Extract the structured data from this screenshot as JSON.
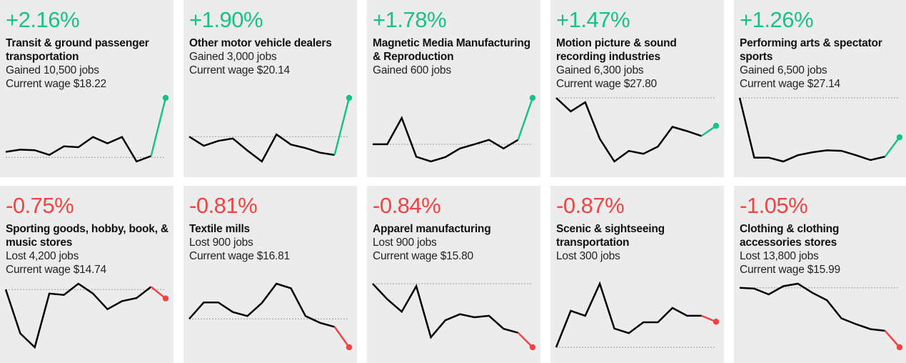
{
  "colors": {
    "gain": "#19c08a",
    "loss": "#ef4444",
    "line": "#000000",
    "background": "#ececec"
  },
  "cards": [
    {
      "pct": "+2.16%",
      "name": "Transit & ground passenger transportation",
      "change": "Gained 10,500 jobs",
      "wage": "Current wage $18.22",
      "direction": "gain"
    },
    {
      "pct": "+1.90%",
      "name": "Other motor vehicle dealers",
      "change": "Gained 3,000 jobs",
      "wage": "Current wage $20.14",
      "direction": "gain"
    },
    {
      "pct": "+1.78%",
      "name": "Magnetic Media Manufacturing & Reproduction",
      "change": "Gained 600 jobs",
      "wage": "",
      "direction": "gain"
    },
    {
      "pct": "+1.47%",
      "name": "Motion picture & sound recording industries",
      "change": "Gained 6,300 jobs",
      "wage": "Current wage $27.80",
      "direction": "gain"
    },
    {
      "pct": "+1.26%",
      "name": "Performing arts & spectator sports",
      "change": "Gained 6,500 jobs",
      "wage": "Current wage $27.14",
      "direction": "gain"
    },
    {
      "pct": "-0.75%",
      "name": "Sporting goods, hobby, book, & music stores",
      "change": "Lost 4,200 jobs",
      "wage": "Current wage $14.74",
      "direction": "loss"
    },
    {
      "pct": "-0.81%",
      "name": "Textile mills",
      "change": "Lost 900 jobs",
      "wage": "Current wage $16.81",
      "direction": "loss"
    },
    {
      "pct": "-0.84%",
      "name": "Apparel manufacturing",
      "change": "Lost 900 jobs",
      "wage": "Current wage $15.80",
      "direction": "loss"
    },
    {
      "pct": "-0.87%",
      "name": "Scenic & sightseeing transportation",
      "change": "Lost 300 jobs",
      "wage": "",
      "direction": "loss"
    },
    {
      "pct": "-1.05%",
      "name": "Clothing & clothing accessories stores",
      "change": "Lost 13,800 jobs",
      "wage": "Current wage $15.99",
      "direction": "loss"
    }
  ],
  "chart_data": [
    {
      "type": "line",
      "title": "Transit & ground passenger transportation",
      "values": [
        0.2,
        0.28,
        0.26,
        0.09,
        0.4,
        0.37,
        0.74,
        0.51,
        0.74,
        -0.15,
        0.05,
        2.16
      ],
      "baseline": 0
    },
    {
      "type": "line",
      "title": "Other motor vehicle dealers",
      "values": [
        0.0,
        -0.45,
        -0.21,
        -0.09,
        -0.68,
        -1.22,
        0.11,
        -0.39,
        -0.56,
        -0.79,
        -0.9,
        1.9
      ],
      "baseline": 0
    },
    {
      "type": "line",
      "title": "Magnetic Media Manufacturing & Reproduction",
      "values": [
        0.0,
        0.0,
        1.01,
        -0.48,
        -0.66,
        -0.49,
        -0.16,
        0.0,
        0.17,
        -0.16,
        0.17,
        1.78
      ],
      "baseline": 0
    },
    {
      "type": "line",
      "title": "Motion picture & sound recording industries",
      "values": [
        0.0,
        -0.28,
        -0.09,
        -0.85,
        -1.32,
        -1.1,
        -1.16,
        -1.01,
        -0.6,
        -0.69,
        -0.79,
        -0.58
      ],
      "baseline": 0
    },
    {
      "type": "line",
      "title": "Performing arts & spectator sports",
      "values": [
        0.0,
        -1.23,
        -1.23,
        -1.31,
        -1.18,
        -1.12,
        -1.08,
        -1.09,
        -1.18,
        -1.28,
        -1.21,
        -0.81
      ],
      "baseline": 0
    },
    {
      "type": "line",
      "title": "Sporting goods, hobby, book, & music stores",
      "values": [
        0.0,
        -0.98,
        -1.29,
        -0.09,
        -0.12,
        0.13,
        -0.09,
        -0.44,
        -0.26,
        -0.19,
        0.06,
        -0.2
      ],
      "baseline": 0
    },
    {
      "type": "line",
      "title": "Textile mills",
      "values": [
        0.0,
        0.29,
        0.29,
        0.12,
        0.05,
        0.28,
        0.62,
        0.54,
        0.05,
        -0.07,
        -0.14,
        -0.5
      ],
      "baseline": 0
    },
    {
      "type": "line",
      "title": "Apparel manufacturing",
      "values": [
        0.0,
        -0.31,
        -0.56,
        -0.05,
        -1.07,
        -0.73,
        -0.61,
        -0.67,
        -0.64,
        -0.9,
        -0.98,
        -1.27
      ],
      "baseline": 0
    },
    {
      "type": "line",
      "title": "Scenic & sightseeing transportation",
      "values": [
        -2.5,
        -1.16,
        -1.34,
        -0.16,
        -1.81,
        -1.98,
        -1.58,
        -1.58,
        -1.05,
        -1.34,
        -1.34,
        -1.56
      ],
      "baseline": -2.5
    },
    {
      "type": "line",
      "title": "Clothing & clothing accessories stores",
      "values": [
        0.0,
        -0.01,
        -0.08,
        0.02,
        0.05,
        -0.06,
        -0.15,
        -0.37,
        -0.44,
        -0.5,
        -0.52,
        -0.72
      ],
      "baseline": 0
    }
  ]
}
